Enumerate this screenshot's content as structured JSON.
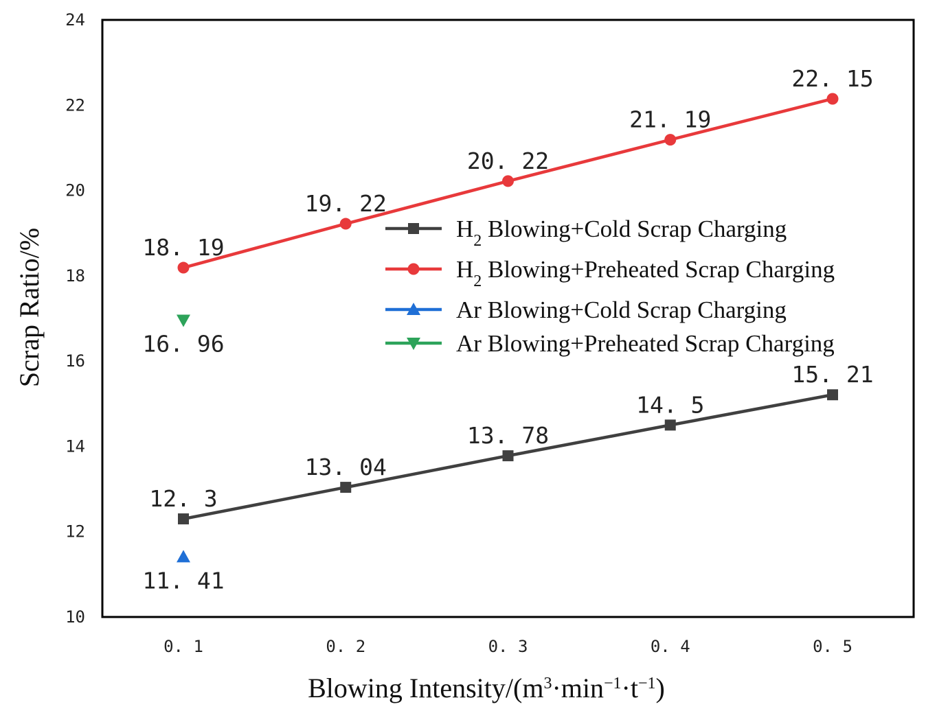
{
  "chart_data": {
    "type": "line",
    "title": "",
    "xlabel": "Blowing Intensity/(m³·min⁻¹·t⁻¹)",
    "xlabel_parts": {
      "main": "Blowing Intensity/(m",
      "sup1": "3",
      "mid1": "·min",
      "sup2": "−1",
      "mid2": "·t",
      "sup3": "−1",
      "end": ")"
    },
    "ylabel": "Scrap Ratio/%",
    "x_ticks": [
      "0. 1",
      "0. 2",
      "0. 3",
      "0. 4",
      "0. 5"
    ],
    "x": [
      0.1,
      0.2,
      0.3,
      0.4,
      0.5
    ],
    "ylim": [
      10,
      24
    ],
    "y_ticks": [
      "10",
      "12",
      "14",
      "16",
      "18",
      "20",
      "22",
      "24"
    ],
    "legend_position": "center-right",
    "series": [
      {
        "name": "H2 Blowing+Cold Scrap Charging",
        "legend_parts": {
          "base": "H",
          "sub": "2",
          "rest": " Blowing+Cold Scrap Charging"
        },
        "color": "#404040",
        "marker": "square",
        "x": [
          0.1,
          0.2,
          0.3,
          0.4,
          0.5
        ],
        "values": [
          12.3,
          13.04,
          13.78,
          14.5,
          15.21
        ],
        "labels": [
          "12. 3",
          "13. 04",
          "13. 78",
          "14. 5",
          "15. 21"
        ],
        "label_pos": "above"
      },
      {
        "name": "H2 Blowing+Preheated Scrap Charging",
        "legend_parts": {
          "base": "H",
          "sub": "2",
          "rest": " Blowing+Preheated Scrap Charging"
        },
        "color": "#e8393b",
        "marker": "circle",
        "x": [
          0.1,
          0.2,
          0.3,
          0.4,
          0.5
        ],
        "values": [
          18.19,
          19.22,
          20.22,
          21.19,
          22.15
        ],
        "labels": [
          "18. 19",
          "19. 22",
          "20. 22",
          "21. 19",
          "22. 15"
        ],
        "label_pos": "above"
      },
      {
        "name": "Ar Blowing+Cold Scrap Charging",
        "legend_parts": {
          "base": "Ar Blowing+Cold Scrap Charging",
          "sub": "",
          "rest": ""
        },
        "color": "#1f6fd6",
        "marker": "triangle-up",
        "x": [
          0.1
        ],
        "values": [
          11.41
        ],
        "labels": [
          "11. 41"
        ],
        "label_pos": "below"
      },
      {
        "name": "Ar Blowing+Preheated Scrap Charging",
        "legend_parts": {
          "base": "Ar Blowing+Preheated Scrap Charging",
          "sub": "",
          "rest": ""
        },
        "color": "#2da35a",
        "marker": "triangle-down",
        "x": [
          0.1
        ],
        "values": [
          16.96
        ],
        "labels": [
          "16. 96"
        ],
        "label_pos": "below"
      }
    ]
  }
}
